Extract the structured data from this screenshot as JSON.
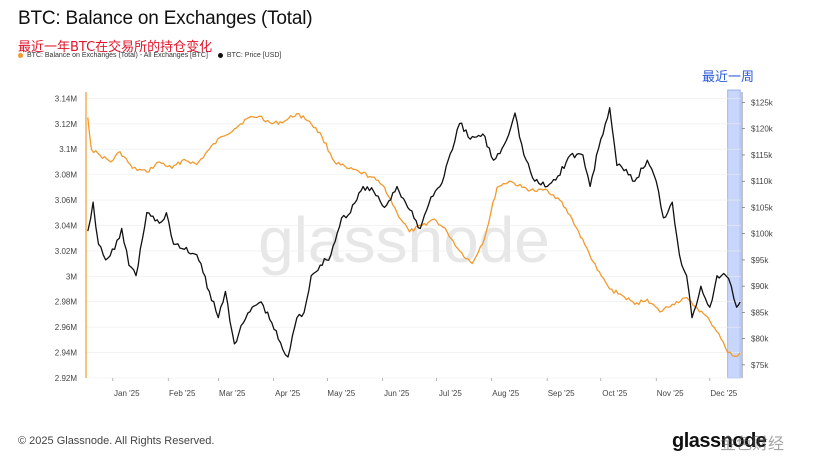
{
  "header": {
    "title": "BTC: Balance on Exchanges (Total)",
    "subtitle": "最近一年BTC在交易所的持仓变化"
  },
  "legend": {
    "series_balance": "BTC: Balance on Exchanges (Total) - All Exchanges [BTC]",
    "series_price": "BTC: Price [USD]"
  },
  "annotation": {
    "recent_week": "最近一周"
  },
  "footer": {
    "copyright": "© 2025 Glassnode. All Rights Reserved."
  },
  "watermark": {
    "brand": "glassnode",
    "cn": "金色财经"
  },
  "colors": {
    "balance": "#f29a2e",
    "price": "#111111",
    "highlight": "#c8d6fb",
    "highlight_border": "#8aa4f0"
  },
  "chart_data": {
    "type": "line",
    "x_tick_labels": [
      "Jan '25",
      "Feb '25",
      "Mar '25",
      "Apr '25",
      "May '25",
      "Jun '25",
      "Jul '25",
      "Aug '25",
      "Sep '25",
      "Oct '25",
      "Nov '25",
      "Dec '25"
    ],
    "y_left": {
      "label": "",
      "ticks": [
        "3.14M",
        "3.12M",
        "3.1M",
        "3.08M",
        "3.06M",
        "3.04M",
        "3.02M",
        "3M",
        "2.98M",
        "2.96M",
        "2.94M",
        "2.92M"
      ],
      "range": [
        2.92,
        3.145
      ]
    },
    "y_right": {
      "label": "",
      "ticks": [
        "$125k",
        "$120k",
        "$115k",
        "$110k",
        "$105k",
        "$100k",
        "$95k",
        "$90k",
        "$85k",
        "$80k",
        "$75k"
      ],
      "range": [
        72.5,
        127
      ]
    },
    "highlight_range": [
      "2025-12-11",
      "2025-12-18"
    ],
    "series": [
      {
        "name": "BTC: Balance on Exchanges (Total) - All Exchanges [BTC]",
        "axis": "left",
        "unit": "M BTC",
        "points": [
          [
            "2024-12-18",
            3.125
          ],
          [
            "2024-12-20",
            3.1
          ],
          [
            "2024-12-25",
            3.095
          ],
          [
            "2024-12-31",
            3.09
          ],
          [
            "2025-01-05",
            3.098
          ],
          [
            "2025-01-12",
            3.085
          ],
          [
            "2025-01-20",
            3.082
          ],
          [
            "2025-01-27",
            3.09
          ],
          [
            "2025-02-03",
            3.085
          ],
          [
            "2025-02-10",
            3.092
          ],
          [
            "2025-02-17",
            3.088
          ],
          [
            "2025-02-24",
            3.1
          ],
          [
            "2025-03-03",
            3.11
          ],
          [
            "2025-03-10",
            3.116
          ],
          [
            "2025-03-17",
            3.124
          ],
          [
            "2025-03-24",
            3.126
          ],
          [
            "2025-03-31",
            3.12
          ],
          [
            "2025-04-07",
            3.122
          ],
          [
            "2025-04-14",
            3.128
          ],
          [
            "2025-04-21",
            3.122
          ],
          [
            "2025-04-28",
            3.11
          ],
          [
            "2025-05-05",
            3.09
          ],
          [
            "2025-05-12",
            3.085
          ],
          [
            "2025-05-19",
            3.082
          ],
          [
            "2025-05-26",
            3.078
          ],
          [
            "2025-06-02",
            3.07
          ],
          [
            "2025-06-09",
            3.05
          ],
          [
            "2025-06-16",
            3.035
          ],
          [
            "2025-06-23",
            3.04
          ],
          [
            "2025-06-30",
            3.045
          ],
          [
            "2025-07-07",
            3.035
          ],
          [
            "2025-07-14",
            3.02
          ],
          [
            "2025-07-21",
            3.01
          ],
          [
            "2025-07-28",
            3.03
          ],
          [
            "2025-08-04",
            3.07
          ],
          [
            "2025-08-11",
            3.075
          ],
          [
            "2025-08-18",
            3.07
          ],
          [
            "2025-08-25",
            3.067
          ],
          [
            "2025-09-01",
            3.068
          ],
          [
            "2025-09-08",
            3.06
          ],
          [
            "2025-09-15",
            3.045
          ],
          [
            "2025-09-22",
            3.025
          ],
          [
            "2025-09-29",
            3.005
          ],
          [
            "2025-10-06",
            2.99
          ],
          [
            "2025-10-13",
            2.985
          ],
          [
            "2025-10-20",
            2.978
          ],
          [
            "2025-10-27",
            2.982
          ],
          [
            "2025-11-03",
            2.972
          ],
          [
            "2025-11-10",
            2.978
          ],
          [
            "2025-11-17",
            2.983
          ],
          [
            "2025-11-24",
            2.975
          ],
          [
            "2025-12-01",
            2.965
          ],
          [
            "2025-12-06",
            2.955
          ],
          [
            "2025-12-11",
            2.94
          ],
          [
            "2025-12-15",
            2.937
          ],
          [
            "2025-12-18",
            2.94
          ]
        ]
      },
      {
        "name": "BTC: Price [USD]",
        "axis": "right",
        "unit": "USD k",
        "points": [
          [
            "2024-12-18",
            100.5
          ],
          [
            "2024-12-21",
            106
          ],
          [
            "2024-12-24",
            98
          ],
          [
            "2024-12-28",
            95
          ],
          [
            "2025-01-02",
            97
          ],
          [
            "2025-01-06",
            101
          ],
          [
            "2025-01-10",
            94
          ],
          [
            "2025-01-14",
            92
          ],
          [
            "2025-01-20",
            104
          ],
          [
            "2025-01-27",
            102
          ],
          [
            "2025-01-31",
            104
          ],
          [
            "2025-02-04",
            98
          ],
          [
            "2025-02-10",
            97
          ],
          [
            "2025-02-17",
            96
          ],
          [
            "2025-02-24",
            89
          ],
          [
            "2025-03-01",
            84
          ],
          [
            "2025-03-05",
            89
          ],
          [
            "2025-03-10",
            79
          ],
          [
            "2025-03-15",
            83
          ],
          [
            "2025-03-20",
            86
          ],
          [
            "2025-03-25",
            87
          ],
          [
            "2025-03-31",
            83
          ],
          [
            "2025-04-06",
            78
          ],
          [
            "2025-04-09",
            76.5
          ],
          [
            "2025-04-14",
            84
          ],
          [
            "2025-04-18",
            85
          ],
          [
            "2025-04-22",
            92
          ],
          [
            "2025-04-27",
            94
          ],
          [
            "2025-05-03",
            96
          ],
          [
            "2025-05-09",
            103
          ],
          [
            "2025-05-14",
            104
          ],
          [
            "2025-05-21",
            109
          ],
          [
            "2025-05-27",
            108
          ],
          [
            "2025-06-02",
            105
          ],
          [
            "2025-06-09",
            109
          ],
          [
            "2025-06-15",
            105
          ],
          [
            "2025-06-22",
            101
          ],
          [
            "2025-06-28",
            107
          ],
          [
            "2025-07-03",
            109
          ],
          [
            "2025-07-10",
            116
          ],
          [
            "2025-07-14",
            121
          ],
          [
            "2025-07-20",
            118
          ],
          [
            "2025-07-27",
            119
          ],
          [
            "2025-08-02",
            114
          ],
          [
            "2025-08-08",
            117
          ],
          [
            "2025-08-14",
            123
          ],
          [
            "2025-08-19",
            115
          ],
          [
            "2025-08-25",
            110
          ],
          [
            "2025-09-01",
            109
          ],
          [
            "2025-09-07",
            111
          ],
          [
            "2025-09-14",
            115
          ],
          [
            "2025-09-21",
            115
          ],
          [
            "2025-09-25",
            109
          ],
          [
            "2025-10-01",
            118
          ],
          [
            "2025-10-06",
            124
          ],
          [
            "2025-10-10",
            113
          ],
          [
            "2025-10-14",
            112
          ],
          [
            "2025-10-20",
            110
          ],
          [
            "2025-10-27",
            114
          ],
          [
            "2025-11-01",
            110
          ],
          [
            "2025-11-05",
            103
          ],
          [
            "2025-11-10",
            106
          ],
          [
            "2025-11-14",
            96
          ],
          [
            "2025-11-18",
            92
          ],
          [
            "2025-11-21",
            84
          ],
          [
            "2025-11-26",
            90
          ],
          [
            "2025-12-01",
            86
          ],
          [
            "2025-12-05",
            92
          ],
          [
            "2025-12-10",
            92
          ],
          [
            "2025-12-13",
            90
          ],
          [
            "2025-12-16",
            86
          ],
          [
            "2025-12-18",
            87
          ]
        ]
      }
    ]
  }
}
